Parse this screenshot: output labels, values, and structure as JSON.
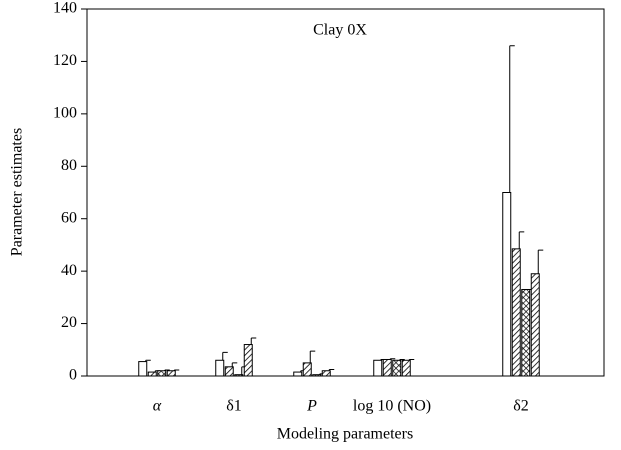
{
  "chart_data": {
    "type": "bar",
    "title": "Clay 0X",
    "x_label": "Modeling parameters",
    "y_label": "Parameter estimates",
    "categories": [
      "α",
      "δ1",
      "P",
      "log 10 (NO)",
      "δ2"
    ],
    "ylim": [
      0,
      140
    ],
    "yticks": [
      0,
      20,
      40,
      60,
      80,
      100,
      120,
      140
    ],
    "series": [
      {
        "color": "#000000",
        "pattern": "none",
        "values": [
          5.5,
          6,
          1.5,
          6,
          70
        ],
        "errors": [
          0.5,
          3,
          0.5,
          0.3,
          56
        ]
      },
      {
        "color": "#000000",
        "pattern": "diagonal",
        "values": [
          1.5,
          3.5,
          5,
          6.3,
          48.5
        ],
        "errors": [
          0.5,
          1.5,
          4.5,
          0.3,
          6.5
        ]
      },
      {
        "color": "#000000",
        "pattern": "crosshatch",
        "values": [
          2,
          0.5,
          0.5,
          6,
          33
        ],
        "errors": [
          0.3,
          3,
          0.3,
          0.3,
          0
        ]
      },
      {
        "color": "#000000",
        "pattern": "diagonal",
        "values": [
          2,
          12,
          2,
          6,
          39
        ],
        "errors": [
          0.3,
          2.5,
          0.5,
          0.3,
          9
        ]
      }
    ]
  }
}
